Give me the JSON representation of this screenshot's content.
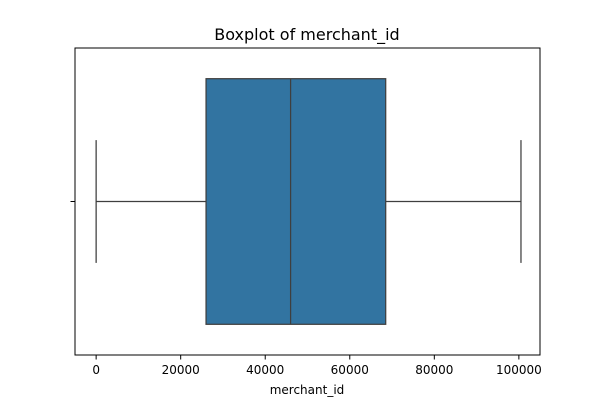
{
  "chart_data": {
    "type": "box",
    "title": "Boxplot of merchant_id",
    "xlabel": "merchant_id",
    "ylabel": "",
    "orientation": "horizontal",
    "xlim": [
      -5000,
      105000
    ],
    "xticks": [
      0,
      20000,
      40000,
      60000,
      80000,
      100000
    ],
    "xtick_labels": [
      "0",
      "20000",
      "40000",
      "60000",
      "80000",
      "100000"
    ],
    "grid": false,
    "series": [
      {
        "min": 0,
        "q1": 26000,
        "median": 46000,
        "q3": 68500,
        "max": 100500
      }
    ],
    "colors": {
      "box_fill": "#3274a1",
      "line": "#3f3f3f",
      "axis": "#000000"
    }
  }
}
